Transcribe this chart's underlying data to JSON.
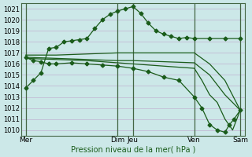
{
  "bg_color": "#cce8e8",
  "grid_color": "#c0b0d0",
  "line_color": "#1a5c1a",
  "xlabel": "Pression niveau de la mer( hPa )",
  "ylim": [
    1009.5,
    1021.5
  ],
  "yticks": [
    1010,
    1011,
    1012,
    1013,
    1014,
    1015,
    1016,
    1017,
    1018,
    1019,
    1020,
    1021
  ],
  "xtick_labels": [
    "Mer",
    "Dim",
    "Jeu",
    "Ven",
    "Sam"
  ],
  "xtick_pos": [
    0,
    6,
    7,
    11,
    14
  ],
  "vlines": [
    0,
    6,
    7,
    11,
    14
  ],
  "xlim": [
    -0.3,
    14.3
  ],
  "series": [
    {
      "x": [
        0,
        0.5,
        1,
        1.5,
        2,
        2.5,
        3,
        3.5,
        4,
        4.5,
        5,
        5.5,
        6,
        6.5,
        7,
        7.5,
        8,
        8.5,
        9,
        9.5,
        10,
        10.5,
        11,
        12,
        13,
        14
      ],
      "y": [
        1013.8,
        1014.5,
        1015.2,
        1017.4,
        1017.5,
        1018.0,
        1018.1,
        1018.2,
        1018.3,
        1019.2,
        1020.0,
        1020.5,
        1020.8,
        1021.0,
        1021.2,
        1020.6,
        1019.7,
        1019.0,
        1018.7,
        1018.5,
        1018.3,
        1018.4,
        1018.3,
        1018.3,
        1018.3,
        1018.3
      ],
      "has_markers": true
    },
    {
      "x": [
        0,
        2,
        4,
        6,
        7,
        9,
        11,
        12,
        13,
        14
      ],
      "y": [
        1016.8,
        1016.8,
        1016.9,
        1017.0,
        1017.0,
        1017.0,
        1017.0,
        1016.0,
        1014.5,
        1011.8
      ],
      "has_markers": false
    },
    {
      "x": [
        0,
        2,
        4,
        6,
        7,
        9,
        11,
        12,
        13,
        14
      ],
      "y": [
        1016.6,
        1016.5,
        1016.4,
        1016.3,
        1016.3,
        1016.2,
        1016.1,
        1015.0,
        1013.2,
        1011.8
      ],
      "has_markers": false
    },
    {
      "x": [
        0,
        2,
        4,
        6,
        7,
        9,
        11,
        11.5,
        12,
        12.5,
        13,
        13.5,
        14
      ],
      "y": [
        1016.5,
        1016.4,
        1016.3,
        1016.1,
        1016.0,
        1015.8,
        1015.6,
        1014.5,
        1013.2,
        1012.5,
        1011.0,
        1010.0,
        1011.8
      ],
      "has_markers": false
    },
    {
      "x": [
        0,
        0.5,
        1,
        1.5,
        2,
        3,
        4,
        5,
        6,
        7,
        8,
        9,
        10,
        11,
        11.5,
        12,
        12.5,
        13,
        13.3,
        13.6,
        14
      ],
      "y": [
        1016.6,
        1016.3,
        1016.2,
        1016.0,
        1016.0,
        1016.1,
        1016.0,
        1015.9,
        1015.8,
        1015.6,
        1015.3,
        1014.8,
        1014.5,
        1013.0,
        1012.0,
        1010.5,
        1010.0,
        1009.8,
        1010.5,
        1011.0,
        1011.8
      ],
      "has_markers": true
    }
  ]
}
